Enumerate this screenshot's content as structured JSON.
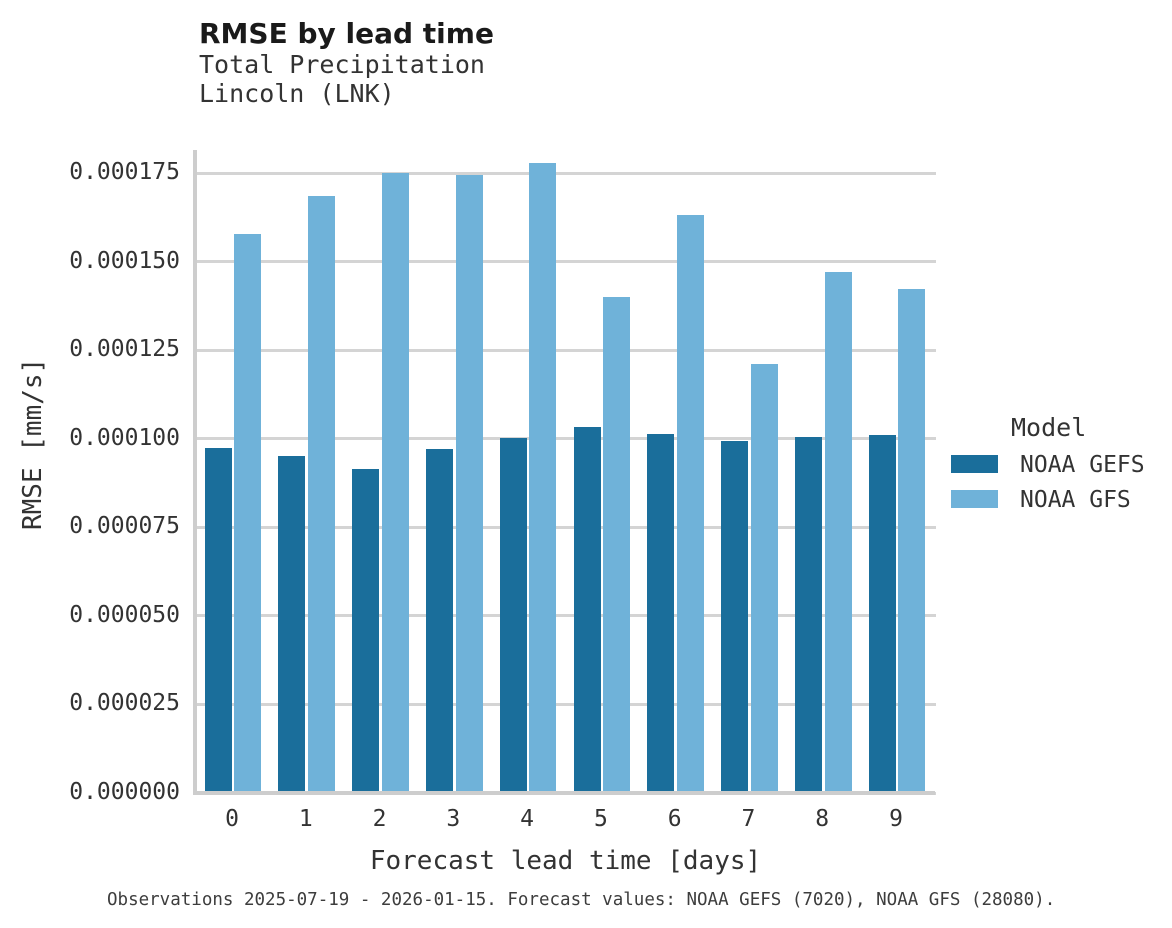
{
  "header": {
    "title": "RMSE by lead time",
    "subtitle_line1": "Total Precipitation",
    "subtitle_line2": "Lincoln (LNK)"
  },
  "caption": "Observations 2025-07-19 - 2026-01-15. Forecast values: NOAA GEFS (7020), NOAA GFS (28080).",
  "colors": {
    "gefs_bar": "#1a6e9b",
    "gfs_bar": "#6fb2d9",
    "gridline": "#d4d4d4",
    "axis_line": "#cdcdcd",
    "text": "#333333"
  },
  "chart_data": {
    "type": "bar",
    "title": "RMSE by lead time",
    "subtitle": [
      "Total Precipitation",
      "Lincoln (LNK)"
    ],
    "xlabel": "Forecast lead time [days]",
    "ylabel": "RMSE [mm/s]",
    "categories": [
      "0",
      "1",
      "2",
      "3",
      "4",
      "5",
      "6",
      "7",
      "8",
      "9"
    ],
    "series": [
      {
        "name": "NOAA GEFS",
        "color": "#1a6e9b",
        "values": [
          9.75e-05,
          9.51e-05,
          9.14e-05,
          9.7e-05,
          0.0001003,
          0.0001032,
          0.0001013,
          9.94e-05,
          0.0001006,
          0.0001011
        ]
      },
      {
        "name": "NOAA GFS",
        "color": "#6fb2d9",
        "values": [
          0.0001577,
          0.0001685,
          0.000175,
          0.0001744,
          0.0001778,
          0.0001401,
          0.0001631,
          0.0001212,
          0.000147,
          0.0001423
        ]
      }
    ],
    "ylim": [
      0,
      0.0001875
    ],
    "yticks": [
      0.0,
      2.5e-05,
      5e-05,
      7.5e-05,
      0.0001,
      0.000125,
      0.00015,
      0.000175
    ],
    "ytick_labels": [
      "0.000000",
      "0.000025",
      "0.000050",
      "0.000075",
      "0.000100",
      "0.000125",
      "0.000150",
      "0.000175"
    ],
    "grid": "horizontal",
    "legend_title": "Model",
    "legend_position": "right"
  }
}
